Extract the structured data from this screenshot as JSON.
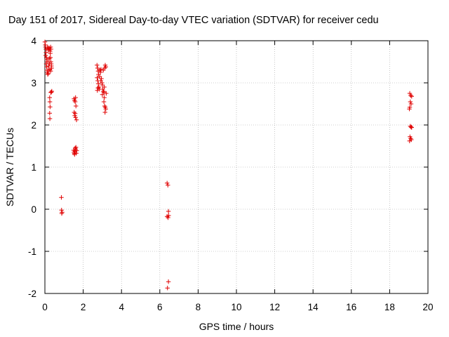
{
  "chart_data": {
    "type": "scatter",
    "title": "Day 151 of 2017, Sidereal Day-to-day VTEC variation (SDTVAR) for receiver cedu",
    "xlabel": "GPS time / hours",
    "ylabel": "SDTVAR / TECUs",
    "xlim": [
      0,
      20
    ],
    "ylim": [
      -2,
      4
    ],
    "xticks": [
      0,
      2,
      4,
      6,
      8,
      10,
      12,
      14,
      16,
      18,
      20
    ],
    "yticks": [
      -2,
      -1,
      0,
      1,
      2,
      3,
      4
    ],
    "grid": true,
    "marker": "+",
    "color": "#e00000",
    "series": [
      {
        "points": [
          [
            0.0,
            3.97
          ],
          [
            0.02,
            3.9
          ],
          [
            0.03,
            3.85
          ],
          [
            0.05,
            3.8
          ],
          [
            0.06,
            3.72
          ],
          [
            0.04,
            3.65
          ],
          [
            0.08,
            3.6
          ],
          [
            0.1,
            3.55
          ],
          [
            0.12,
            3.5
          ],
          [
            0.07,
            3.45
          ],
          [
            0.09,
            3.38
          ],
          [
            0.11,
            3.3
          ],
          [
            0.13,
            3.25
          ],
          [
            0.15,
            3.2
          ],
          [
            0.17,
            3.22
          ],
          [
            0.19,
            3.3
          ],
          [
            0.2,
            3.4
          ],
          [
            0.21,
            3.5
          ],
          [
            0.14,
            3.85
          ],
          [
            0.16,
            3.82
          ],
          [
            0.18,
            3.78
          ],
          [
            0.22,
            3.83
          ],
          [
            0.25,
            3.8
          ],
          [
            0.27,
            3.75
          ],
          [
            0.3,
            3.85
          ],
          [
            0.32,
            3.8
          ],
          [
            0.28,
            3.7
          ],
          [
            0.29,
            3.6
          ],
          [
            0.31,
            3.5
          ],
          [
            0.33,
            3.45
          ],
          [
            0.34,
            3.4
          ],
          [
            0.35,
            3.35
          ],
          [
            0.3,
            3.28
          ],
          [
            0.26,
            3.32
          ],
          [
            0.24,
            3.45
          ],
          [
            0.23,
            3.58
          ],
          [
            0.33,
            2.78
          ],
          [
            0.36,
            2.8
          ],
          [
            0.31,
            2.77
          ],
          [
            0.25,
            2.65
          ],
          [
            0.26,
            2.55
          ],
          [
            0.27,
            2.43
          ],
          [
            0.25,
            2.28
          ],
          [
            0.26,
            2.15
          ],
          [
            0.86,
            0.28
          ],
          [
            0.87,
            -0.02
          ],
          [
            0.88,
            -0.1
          ],
          [
            0.9,
            -0.07
          ],
          [
            1.52,
            2.62
          ],
          [
            1.55,
            2.58
          ],
          [
            1.6,
            2.65
          ],
          [
            1.58,
            2.55
          ],
          [
            1.62,
            2.45
          ],
          [
            1.53,
            2.3
          ],
          [
            1.56,
            2.22
          ],
          [
            1.6,
            2.18
          ],
          [
            1.65,
            2.12
          ],
          [
            1.58,
            2.27
          ],
          [
            1.5,
            1.4
          ],
          [
            1.52,
            1.35
          ],
          [
            1.55,
            1.3
          ],
          [
            1.57,
            1.38
          ],
          [
            1.6,
            1.42
          ],
          [
            1.62,
            1.47
          ],
          [
            1.64,
            1.33
          ],
          [
            1.66,
            1.39
          ],
          [
            1.58,
            1.45
          ],
          [
            1.54,
            1.32
          ],
          [
            2.72,
            3.42
          ],
          [
            2.75,
            3.35
          ],
          [
            2.78,
            3.28
          ],
          [
            2.8,
            3.2
          ],
          [
            2.73,
            3.12
          ],
          [
            2.76,
            3.05
          ],
          [
            2.79,
            2.98
          ],
          [
            2.82,
            2.9
          ],
          [
            2.85,
            2.85
          ],
          [
            2.74,
            2.82
          ],
          [
            2.77,
            2.88
          ],
          [
            2.88,
            3.3
          ],
          [
            2.9,
            3.25
          ],
          [
            2.93,
            3.32
          ],
          [
            2.95,
            3.1
          ],
          [
            2.98,
            3.0
          ],
          [
            3.0,
            2.95
          ],
          [
            3.02,
            2.85
          ],
          [
            3.05,
            2.8
          ],
          [
            3.08,
            2.78
          ],
          [
            3.1,
            2.9
          ],
          [
            3.12,
            3.35
          ],
          [
            3.15,
            3.42
          ],
          [
            3.18,
            3.38
          ],
          [
            3.05,
            3.3
          ],
          [
            2.92,
            3.05
          ],
          [
            3.1,
            2.65
          ],
          [
            3.08,
            2.55
          ],
          [
            3.12,
            2.45
          ],
          [
            3.15,
            2.42
          ],
          [
            3.18,
            2.38
          ],
          [
            3.14,
            2.3
          ],
          [
            3.2,
            2.75
          ],
          [
            3.0,
            2.72
          ],
          [
            2.86,
            3.15
          ],
          [
            6.38,
            0.62
          ],
          [
            6.42,
            0.57
          ],
          [
            6.45,
            -0.05
          ],
          [
            6.38,
            -0.17
          ],
          [
            6.43,
            -0.2
          ],
          [
            6.46,
            -0.15
          ],
          [
            6.45,
            -1.72
          ],
          [
            6.4,
            -1.87
          ],
          [
            19.05,
            2.75
          ],
          [
            19.1,
            2.7
          ],
          [
            19.15,
            2.68
          ],
          [
            19.08,
            2.55
          ],
          [
            19.12,
            2.5
          ],
          [
            19.05,
            2.42
          ],
          [
            19.03,
            2.38
          ],
          [
            19.08,
            1.97
          ],
          [
            19.12,
            1.95
          ],
          [
            19.15,
            1.94
          ],
          [
            19.06,
            1.72
          ],
          [
            19.1,
            1.68
          ],
          [
            19.04,
            1.62
          ],
          [
            19.13,
            1.65
          ]
        ]
      }
    ]
  }
}
